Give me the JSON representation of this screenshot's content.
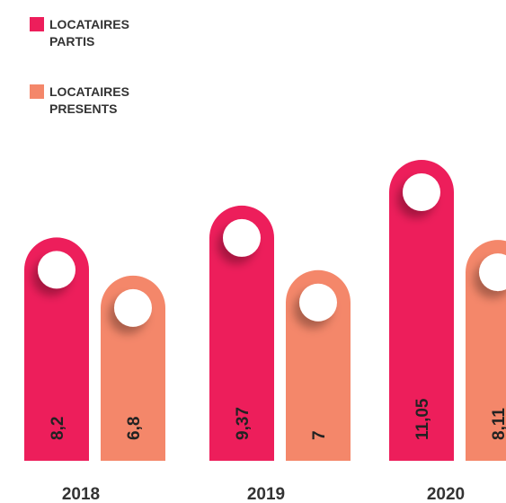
{
  "chart_data": {
    "type": "bar",
    "categories": [
      "2018",
      "2019",
      "2020"
    ],
    "series": [
      {
        "name": "LOCATAIRES PARTIS",
        "color": "#ed1e5b",
        "values": [
          8.2,
          9.37,
          11.05
        ],
        "value_labels": [
          "8,2",
          "9,37",
          "11,05"
        ]
      },
      {
        "name": "LOCATAIRES PRESENTS",
        "color": "#f4876a",
        "values": [
          6.8,
          7,
          8.11
        ],
        "value_labels": [
          "6,8",
          "7",
          "8,11"
        ]
      }
    ]
  }
}
